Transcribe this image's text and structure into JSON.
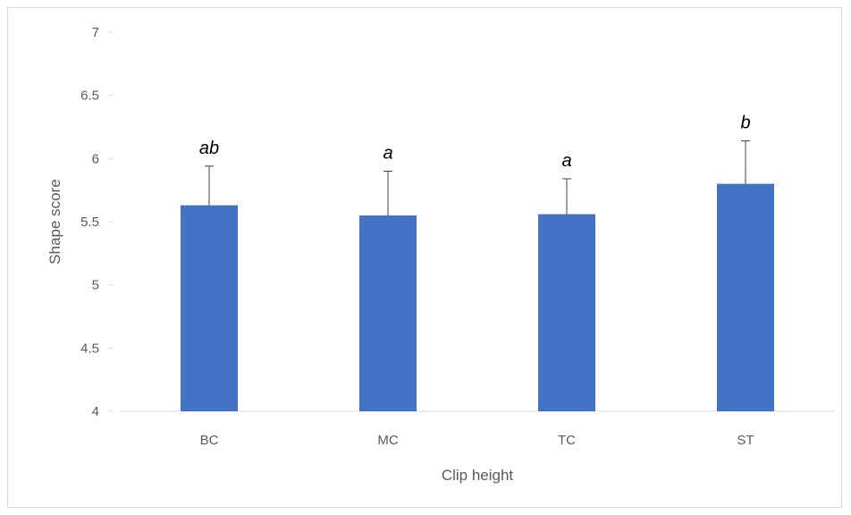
{
  "chart_data": {
    "type": "bar",
    "categories": [
      "BC",
      "MC",
      "TC",
      "ST"
    ],
    "values": [
      5.63,
      5.55,
      5.56,
      5.8
    ],
    "error_plus": [
      0.31,
      0.35,
      0.28,
      0.34
    ],
    "annotations": [
      "ab",
      "a",
      "a",
      "b"
    ],
    "xlabel": "Clip height",
    "ylabel": "Shape score",
    "ylim": [
      4,
      7
    ],
    "yticks": [
      4,
      4.5,
      5,
      5.5,
      6,
      6.5,
      7
    ],
    "ytick_labels": [
      "4",
      "4.5",
      "5",
      "5.5",
      "6",
      "6.5",
      "7"
    ],
    "grid": false,
    "legend": "none",
    "bar_color": "#4472C4",
    "errorbar_color": "#404040",
    "axis_color": "#d9d9d9"
  }
}
